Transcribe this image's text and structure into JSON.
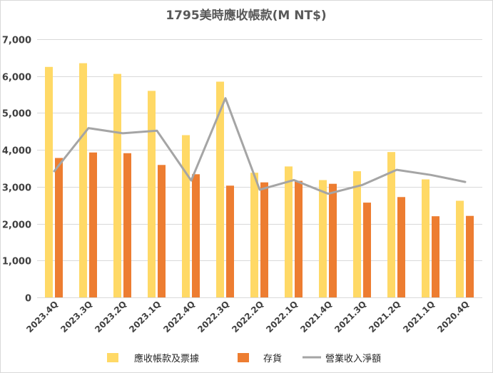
{
  "chart_data": {
    "type": "bar",
    "title": "1795美時應收帳款(M NT$)",
    "categories": [
      "2023.4Q",
      "2023.3Q",
      "2023.2Q",
      "2023.1Q",
      "2022.4Q",
      "2022.3Q",
      "2022.2Q",
      "2022.1Q",
      "2021.4Q",
      "2021.3Q",
      "2021.2Q",
      "2021.1Q",
      "2020.4Q"
    ],
    "series": [
      {
        "name": "應收帳款及票據",
        "type": "bar",
        "color": "#ffd966",
        "values": [
          6250,
          6350,
          6060,
          5600,
          4400,
          5850,
          3380,
          3550,
          3180,
          3420,
          3940,
          3200,
          2620
        ]
      },
      {
        "name": "存貨",
        "type": "bar",
        "color": "#ed7d31",
        "values": [
          3780,
          3930,
          3910,
          3590,
          3340,
          3030,
          3120,
          3160,
          3080,
          2570,
          2720,
          2200,
          2210
        ]
      },
      {
        "name": "營業收入淨額",
        "type": "line",
        "color": "#a5a5a5",
        "values": [
          3420,
          4590,
          4450,
          4520,
          3170,
          5400,
          2920,
          3180,
          2810,
          3050,
          3460,
          3320,
          3130
        ]
      }
    ],
    "ylim": [
      0,
      7000
    ],
    "yticks": [
      "0",
      "1,000",
      "2,000",
      "3,000",
      "4,000",
      "5,000",
      "6,000",
      "7,000"
    ],
    "ytick_values": [
      0,
      1000,
      2000,
      3000,
      4000,
      5000,
      6000,
      7000
    ],
    "grid": true,
    "legend_position": "bottom"
  }
}
